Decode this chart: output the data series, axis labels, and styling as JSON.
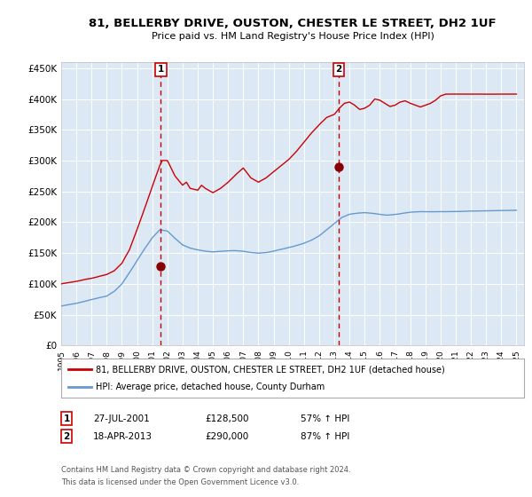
{
  "title": "81, BELLERBY DRIVE, OUSTON, CHESTER LE STREET, DH2 1UF",
  "subtitle": "Price paid vs. HM Land Registry's House Price Index (HPI)",
  "background_color": "#ffffff",
  "plot_bg_color": "#dce9f5",
  "grid_color": "#ffffff",
  "ylim": [
    0,
    460000
  ],
  "yticks": [
    0,
    50000,
    100000,
    150000,
    200000,
    250000,
    300000,
    350000,
    400000,
    450000
  ],
  "xlim_start": 1995.0,
  "xlim_end": 2025.5,
  "sale1_x": 2001.57,
  "sale1_y": 128500,
  "sale2_x": 2013.3,
  "sale2_y": 290000,
  "line1_color": "#cc0000",
  "line2_color": "#6699cc",
  "marker_color": "#880000",
  "dashed_line_color": "#cc0000",
  "legend_line1": "81, BELLERBY DRIVE, OUSTON, CHESTER LE STREET, DH2 1UF (detached house)",
  "legend_line2": "HPI: Average price, detached house, County Durham",
  "table_row1_idx": "1",
  "table_row1_date": "27-JUL-2001",
  "table_row1_price": "£128,500",
  "table_row1_hpi": "57% ↑ HPI",
  "table_row2_idx": "2",
  "table_row2_date": "18-APR-2013",
  "table_row2_price": "£290,000",
  "table_row2_hpi": "87% ↑ HPI",
  "footnote1": "Contains HM Land Registry data © Crown copyright and database right 2024.",
  "footnote2": "This data is licensed under the Open Government Licence v3.0.",
  "hpi_knots_x": [
    0,
    6,
    12,
    18,
    24,
    30,
    36,
    42,
    48,
    54,
    60,
    66,
    72,
    78,
    84,
    90,
    96,
    102,
    108,
    114,
    120,
    126,
    132,
    138,
    144,
    150,
    156,
    162,
    168,
    174,
    180,
    186,
    192,
    198,
    204,
    210,
    216,
    222,
    228,
    234,
    240,
    246,
    252,
    258,
    264,
    270,
    276,
    282,
    288,
    294,
    300,
    306,
    360
  ],
  "hpi_knots_y": [
    64000,
    66000,
    68000,
    71000,
    74000,
    77000,
    80000,
    88000,
    100000,
    118000,
    138000,
    157000,
    175000,
    188000,
    186000,
    174000,
    163000,
    158000,
    155000,
    153000,
    152000,
    153000,
    154000,
    154000,
    153000,
    151000,
    150000,
    151000,
    153000,
    156000,
    159000,
    162000,
    166000,
    171000,
    178000,
    188000,
    198000,
    208000,
    213000,
    215000,
    216000,
    215000,
    213000,
    212000,
    213000,
    215000,
    217000,
    218000,
    218000,
    218000,
    218000,
    218000,
    220000
  ],
  "red_knots_x": [
    0,
    6,
    12,
    18,
    24,
    30,
    36,
    42,
    48,
    54,
    60,
    66,
    72,
    78,
    80,
    84,
    90,
    96,
    99,
    102,
    108,
    111,
    114,
    120,
    126,
    132,
    138,
    144,
    150,
    156,
    162,
    168,
    174,
    180,
    186,
    192,
    198,
    204,
    210,
    216,
    220,
    224,
    228,
    232,
    236,
    240,
    244,
    248,
    252,
    256,
    260,
    264,
    268,
    272,
    276,
    280,
    284,
    288,
    292,
    296,
    300,
    304,
    306,
    360
  ],
  "red_knots_y": [
    100000,
    102000,
    104000,
    107000,
    109000,
    112000,
    115000,
    121000,
    133000,
    155000,
    188000,
    222000,
    258000,
    292000,
    300000,
    300000,
    275000,
    260000,
    265000,
    255000,
    252000,
    260000,
    255000,
    248000,
    255000,
    265000,
    277000,
    288000,
    272000,
    265000,
    272000,
    282000,
    292000,
    302000,
    315000,
    330000,
    345000,
    358000,
    370000,
    375000,
    385000,
    393000,
    395000,
    390000,
    383000,
    385000,
    390000,
    400000,
    398000,
    393000,
    388000,
    390000,
    395000,
    397000,
    393000,
    390000,
    387000,
    390000,
    393000,
    398000,
    405000,
    408000,
    408000,
    408000
  ]
}
